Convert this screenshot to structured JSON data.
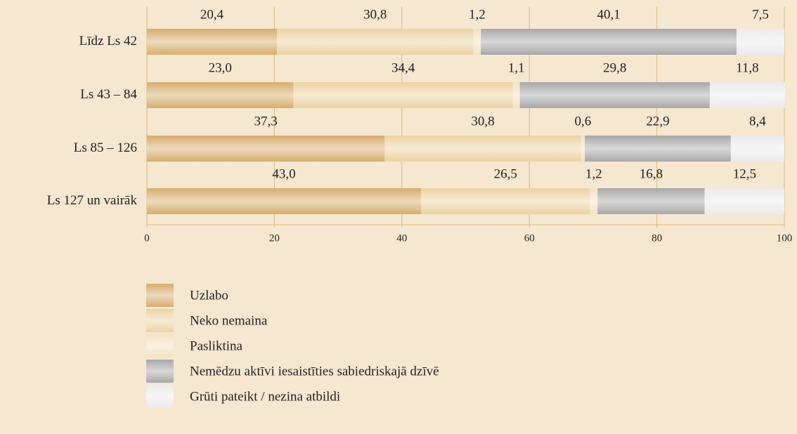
{
  "chart_data": {
    "type": "stacked-bar-horizontal",
    "categories": [
      "Līdz Ls 42",
      "Ls 43 – 84",
      "Ls 85 – 126",
      "Ls 127 un vairāk"
    ],
    "series": [
      {
        "name": "Uzlabo",
        "color": "#d6ad6c",
        "values": [
          20.4,
          23.0,
          37.3,
          43.0
        ],
        "value_labels": [
          "20,4",
          "23,0",
          "37,3",
          "43,0"
        ]
      },
      {
        "name": "Neko nemaina",
        "color": "#ecd2a2",
        "values": [
          30.8,
          34.4,
          30.8,
          26.5
        ],
        "value_labels": [
          "30,8",
          "34,4",
          "30,8",
          "26,5"
        ]
      },
      {
        "name": "Pasliktina",
        "color": "#f3e2c2",
        "values": [
          1.2,
          1.1,
          0.6,
          1.2
        ],
        "value_labels": [
          "1,2",
          "1,1",
          "0,6",
          "1,2"
        ]
      },
      {
        "name": "Nemēdzu aktīvi iesaistīties sabiedriskajā dzīvē",
        "color": "#a8a8a8",
        "values": [
          40.1,
          29.8,
          22.9,
          16.8
        ],
        "value_labels": [
          "40,1",
          "29,8",
          "22,9",
          "16,8"
        ]
      },
      {
        "name": "Grūti pateikt / nezina atbildi",
        "color": "#ecebeb",
        "values": [
          7.5,
          11.8,
          8.4,
          12.5
        ],
        "value_labels": [
          "7,5",
          "11,8",
          "8,4",
          "12,5"
        ]
      }
    ],
    "xlim": [
      0,
      100
    ],
    "xticks": [
      0,
      20,
      40,
      60,
      80,
      100
    ],
    "grid": true
  }
}
